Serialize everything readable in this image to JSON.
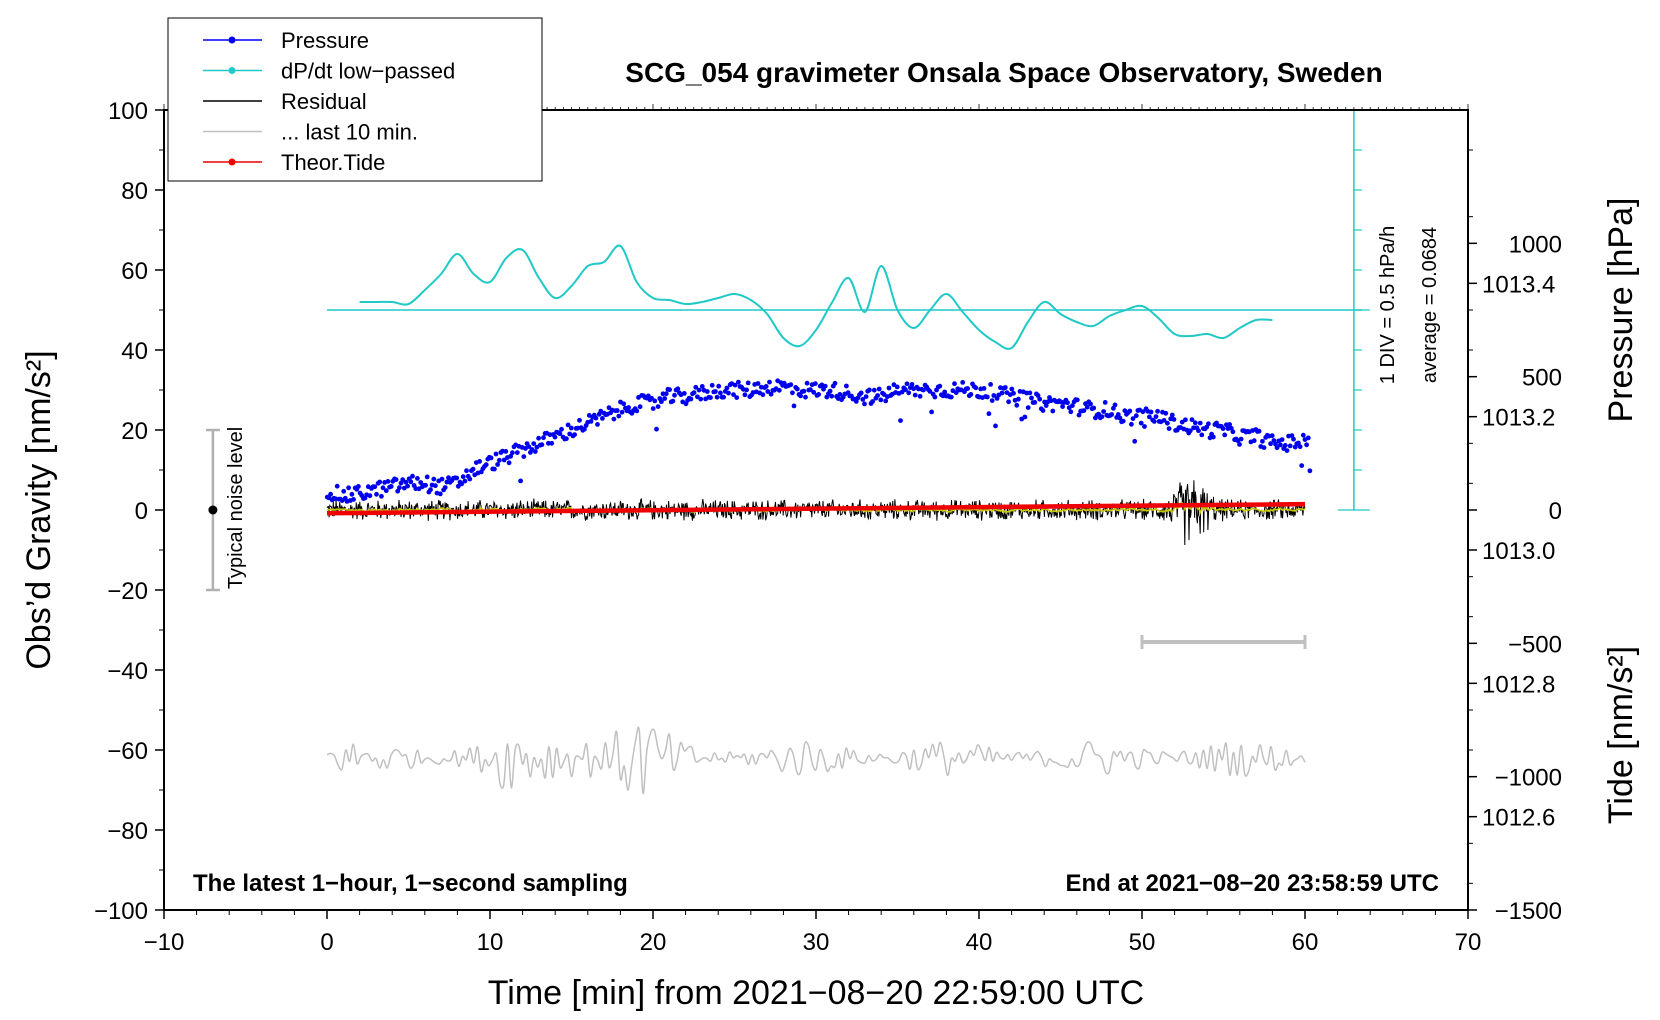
{
  "title": "SCG_054 gravimeter Onsala Space Observatory, Sweden",
  "subtitle_left": "The latest 1−hour, 1−second sampling",
  "subtitle_right": "End at 2021−08−20 23:58:59 UTC",
  "colors": {
    "pressure": "#0000ee",
    "dpdt": "#20c8c8",
    "residual": "#000000",
    "residual_smooth": "#c8c800",
    "last10": "#c0c0c0",
    "tide": "#ee0000",
    "noise": "#b0b0b0"
  },
  "legend": [
    {
      "label": "Pressure",
      "color": "#0000ee",
      "marker": true
    },
    {
      "label": "dP/dt low−passed",
      "color": "#20c8c8",
      "marker": true
    },
    {
      "label": "Residual",
      "color": "#000000",
      "marker": false
    },
    {
      "label": "... last 10 min.",
      "color": "#c0c0c0",
      "marker": false
    },
    {
      "label": "Theor.Tide",
      "color": "#ee0000",
      "marker": true
    }
  ],
  "annotations": {
    "noise_label": "Typical noise level",
    "div_label": "1 DIV = 0.5 hPa/h",
    "avg_label": "average = 0.0684"
  },
  "chart_data": {
    "type": "line",
    "title": "SCG_054 gravimeter Onsala Space Observatory, Sweden",
    "xlabel": "Time [min] from 2021−08−20 22:59:00 UTC",
    "ylabel_left": "Obs’d Gravity [nm/s²]",
    "ylabel_right_top": "Pressure [hPa]",
    "ylabel_right_bottom": "Tide [nm/s²]",
    "xlim": [
      -10,
      70
    ],
    "ylim": [
      -100,
      100
    ],
    "x_ticks": [
      "−10",
      "0",
      "10",
      "20",
      "30",
      "40",
      "50",
      "60",
      "70"
    ],
    "y_ticks": [
      "100",
      "80",
      "60",
      "40",
      "20",
      "0",
      "−20",
      "−40",
      "−60",
      "−80",
      "−100"
    ],
    "pressure_ticks": [
      "1013.4",
      "1013.2",
      "1013.0",
      "1012.8",
      "1012.6"
    ],
    "tide_ticks": [
      "1000",
      "500",
      "0",
      "−500",
      "−1000",
      "−1500"
    ],
    "pressure_axis": {
      "ylim": [
        1012.46,
        1013.66
      ],
      "tick_values": [
        1013.4,
        1013.2,
        1013.0,
        1012.8,
        1012.6
      ]
    },
    "tide_axis": {
      "ylim": [
        -1500,
        1500
      ],
      "tick_values": [
        1000,
        500,
        0,
        -500,
        -1000,
        -1500
      ]
    },
    "series": [
      {
        "name": "Pressure",
        "axis": "pressure_hPa",
        "x": [
          0,
          1,
          2,
          3,
          4,
          5,
          6,
          7,
          8,
          9,
          10,
          11,
          12,
          13,
          14,
          15,
          16,
          17,
          18,
          19,
          20,
          21,
          22,
          23,
          24,
          25,
          26,
          27,
          28,
          29,
          30,
          31,
          32,
          33,
          34,
          35,
          36,
          37,
          38,
          39,
          40,
          41,
          42,
          43,
          44,
          45,
          46,
          47,
          48,
          49,
          50,
          51,
          52,
          53,
          54,
          55,
          56,
          57,
          58,
          59,
          60
        ],
        "y": [
          1013.09,
          1013.08,
          1013.085,
          1013.09,
          1013.095,
          1013.1,
          1013.1,
          1013.095,
          1013.1,
          1013.12,
          1013.13,
          1013.14,
          1013.15,
          1013.16,
          1013.17,
          1013.18,
          1013.19,
          1013.2,
          1013.21,
          1013.22,
          1013.22,
          1013.23,
          1013.23,
          1013.235,
          1013.24,
          1013.24,
          1013.24,
          1013.245,
          1013.245,
          1013.24,
          1013.24,
          1013.24,
          1013.235,
          1013.23,
          1013.23,
          1013.24,
          1013.24,
          1013.24,
          1013.24,
          1013.24,
          1013.24,
          1013.235,
          1013.23,
          1013.225,
          1013.22,
          1013.22,
          1013.215,
          1013.21,
          1013.21,
          1013.2,
          1013.2,
          1013.2,
          1013.19,
          1013.185,
          1013.18,
          1013.18,
          1013.17,
          1013.17,
          1013.16,
          1013.16,
          1013.165
        ]
      },
      {
        "name": "dP/dt low−passed",
        "axis": "gravity_nm_s2",
        "x": [
          2,
          3,
          4,
          5,
          6,
          7,
          8,
          9,
          10,
          11,
          12,
          13,
          14,
          15,
          16,
          17,
          18,
          19,
          20,
          21,
          22,
          23,
          24,
          25,
          26,
          27,
          28,
          29,
          30,
          31,
          32,
          33,
          34,
          35,
          36,
          37,
          38,
          39,
          40,
          41,
          42,
          43,
          44,
          45,
          46,
          47,
          48,
          49,
          50,
          51,
          52,
          53,
          54,
          55,
          56,
          57,
          58
        ],
        "y": [
          52,
          52,
          52,
          51.5,
          55,
          59,
          64,
          59,
          57,
          63,
          65,
          58,
          53,
          56,
          61,
          62,
          66,
          57,
          53,
          52.5,
          51.5,
          52,
          53,
          54,
          52.5,
          49,
          43,
          41,
          45,
          52,
          58,
          49.5,
          61,
          50,
          45.5,
          50,
          54,
          49.5,
          45,
          42,
          40.5,
          47,
          52,
          49,
          47,
          46,
          48.5,
          50,
          51,
          48,
          44,
          43.5,
          44,
          43,
          45.5,
          47.5,
          47.5
        ]
      },
      {
        "name": "Residual",
        "axis": "gravity_nm_s2",
        "x_range": [
          0,
          60
        ],
        "amplitude_nm_s2": 3,
        "burst_x": 53,
        "burst_amplitude_nm_s2": 11
      },
      {
        "name": "... last 10 min.",
        "axis": "gravity_nm_s2",
        "x_range": [
          0,
          60
        ],
        "baseline": -62,
        "min": -72,
        "max": -50
      },
      {
        "name": "Theor.Tide",
        "axis": "tide_nm_s2",
        "x": [
          0,
          60
        ],
        "y": [
          -12,
          22
        ]
      }
    ],
    "noise_bar": {
      "x": -7,
      "y_center": 0,
      "y_range": [
        -20,
        20
      ]
    },
    "dpdt_zero_line": {
      "y": 50,
      "x_range": [
        0,
        63.5
      ]
    },
    "dpdt_scale_bar": {
      "x": 63,
      "y_range": [
        0,
        100
      ]
    },
    "last10_marker": {
      "x_range": [
        50,
        60
      ],
      "y": -33
    }
  }
}
